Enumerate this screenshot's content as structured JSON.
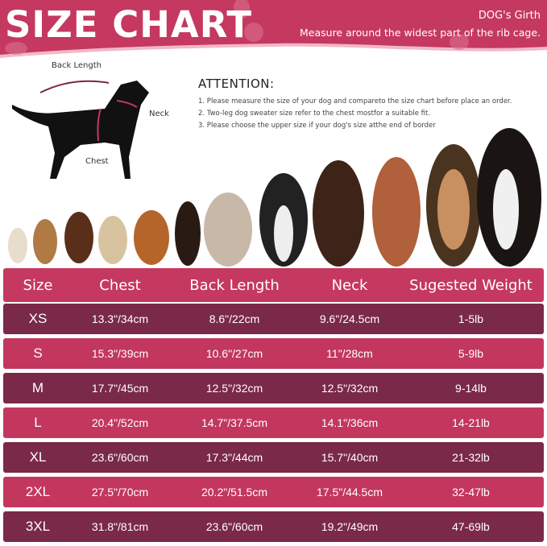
{
  "header": {
    "title": "SIZE CHART",
    "girth_title": "DOG's Girth",
    "girth_desc": "Measure around the widest part of the rib cage."
  },
  "diagram": {
    "back_length": "Back Length",
    "neck": "Neck",
    "chest": "Chest"
  },
  "attention": {
    "title": "ATTENTION:",
    "items": [
      "1. Please measure the size of your dog and compareto the size chart before place an order.",
      "2. Two-leg dog sweater size refer to the chest mostfor a suitable fit.",
      "3. Please choose the upper size if your dog's size atthe end of border"
    ]
  },
  "colors": {
    "brand": "#c5385f",
    "dark_row": "#7b2949",
    "pink_row": "#c3375e"
  },
  "table": {
    "headers": [
      "Size",
      "Chest",
      "Back Length",
      "Neck",
      "Sugested Weight"
    ],
    "rows": [
      [
        "XS",
        "13.3\"/34cm",
        "8.6\"/22cm",
        "9.6\"/24.5cm",
        "1-5lb"
      ],
      [
        "S",
        "15.3\"/39cm",
        "10.6\"/27cm",
        "11\"/28cm",
        "5-9lb"
      ],
      [
        "M",
        "17.7\"/45cm",
        "12.5\"/32cm",
        "12.5\"/32cm",
        "9-14lb"
      ],
      [
        "L",
        "20.4\"/52cm",
        "14.7\"/37.5cm",
        "14.1\"/36cm",
        "14-21lb"
      ],
      [
        "XL",
        "23.6\"/60cm",
        "17.3\"/44cm",
        "15.7\"/40cm",
        "21-32lb"
      ],
      [
        "2XL",
        "27.5\"/70cm",
        "20.2\"/51.5cm",
        "17.5\"/44.5cm",
        "32-47lb"
      ],
      [
        "3XL",
        "31.8\"/81cm",
        "23.6\"/60cm",
        "19.2\"/49cm",
        "47-69lb"
      ]
    ]
  }
}
